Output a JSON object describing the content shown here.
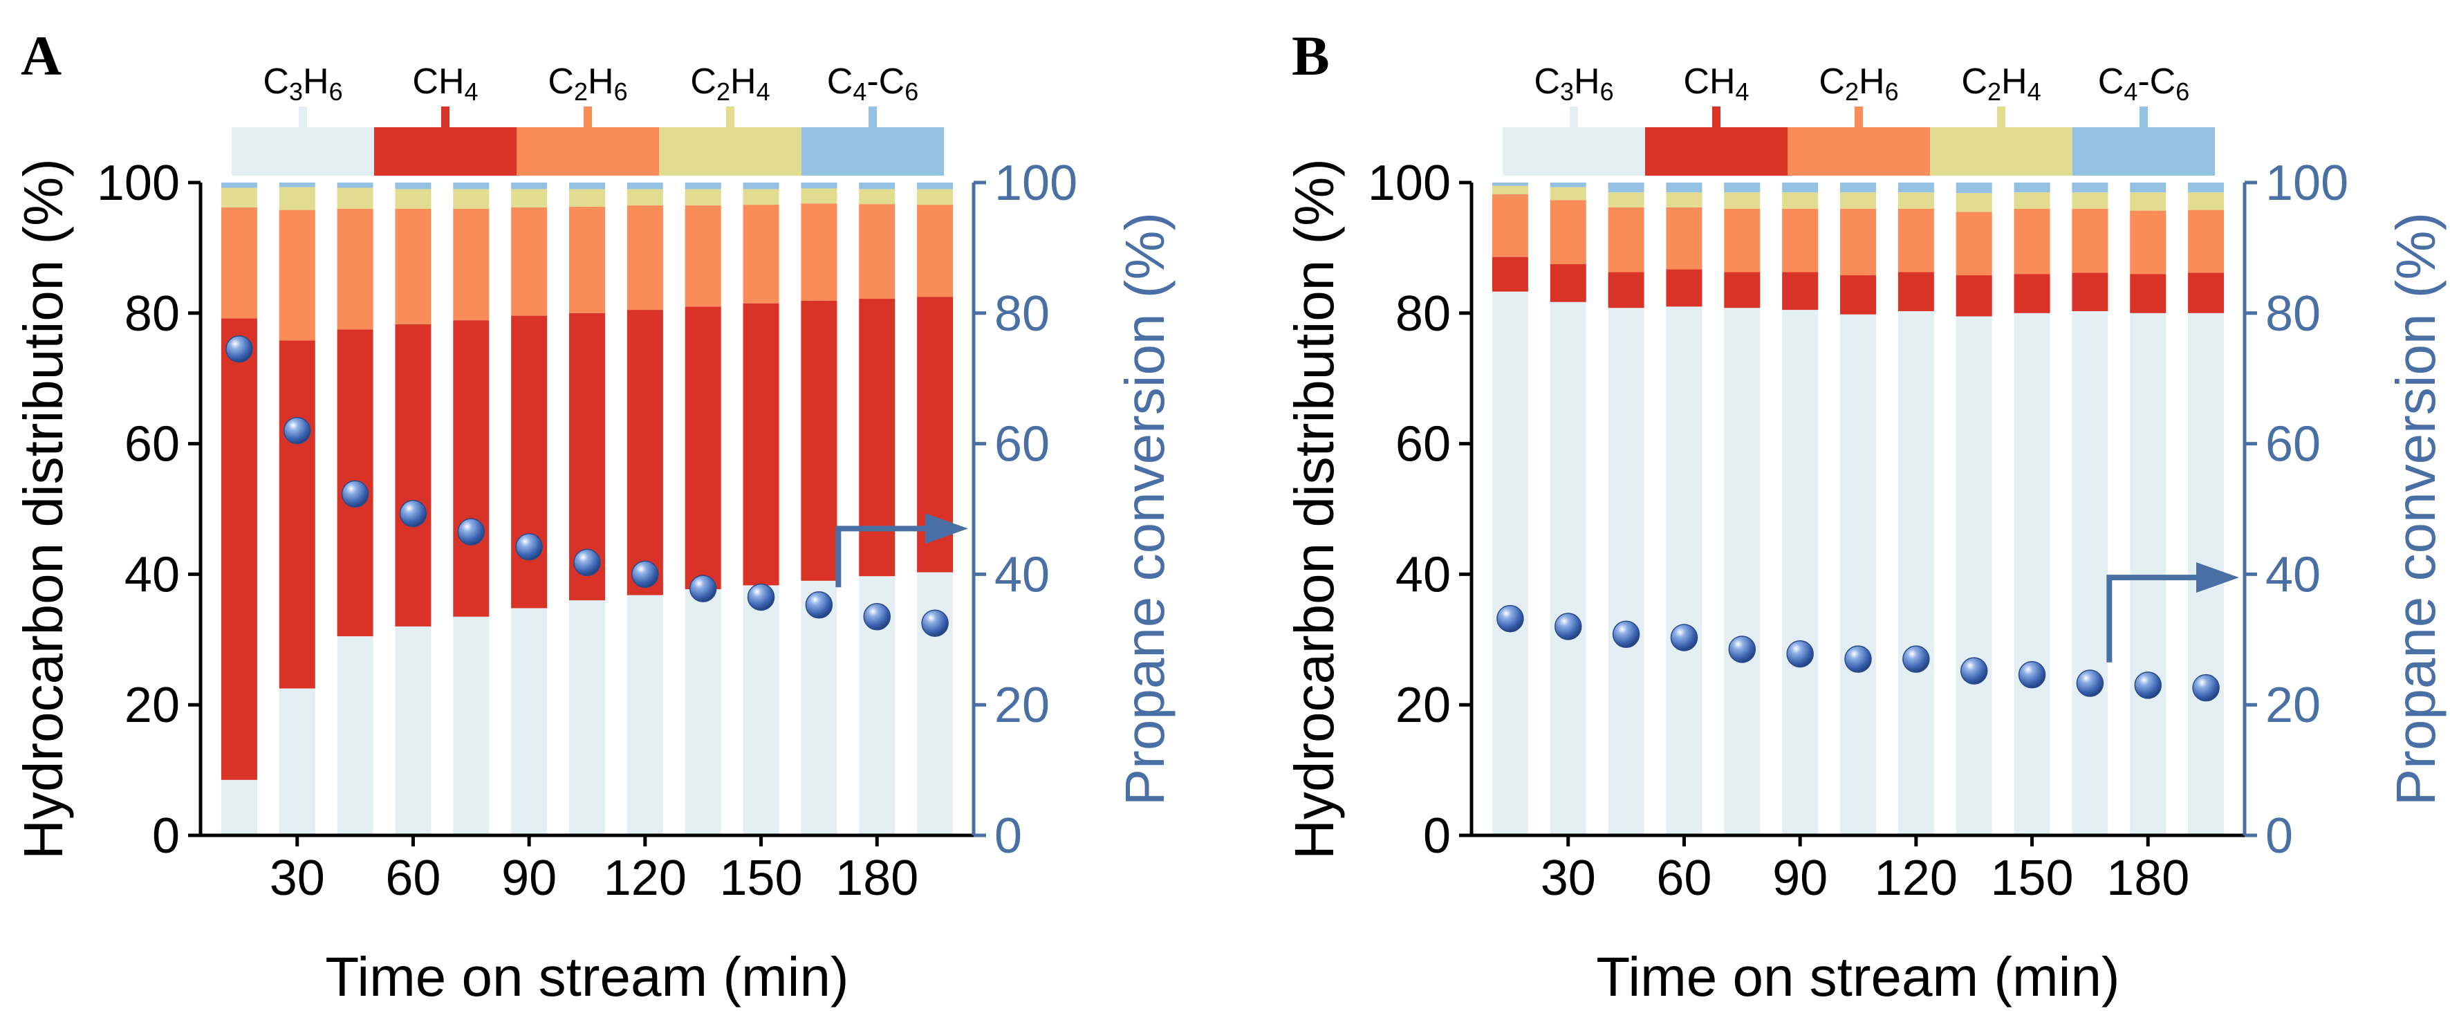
{
  "colors": {
    "C3H6": "#e3eff2",
    "CH4": "#d93327",
    "C2H6": "#f98c58",
    "C2H4": "#e2dc91",
    "C4C6": "#94c0e2",
    "conversion_marker": "#3b63b0",
    "right_axis": "#4a6fa5"
  },
  "chart_data": [
    {
      "type": "bar",
      "stacked": true,
      "panel_label": "A",
      "xlabel": "Time on stream (min)",
      "ylabel": "Hydrocarbon distribution (%)",
      "y2label": "Propane conversion (%)",
      "ylim": [
        0,
        100
      ],
      "y2lim": [
        0,
        100
      ],
      "yticks": [
        0,
        20,
        40,
        60,
        80,
        100
      ],
      "y2ticks": [
        0,
        20,
        40,
        60,
        80,
        100
      ],
      "x": [
        15,
        30,
        45,
        60,
        75,
        90,
        105,
        120,
        135,
        150,
        165,
        180,
        195
      ],
      "xticks": [
        30,
        60,
        90,
        120,
        150,
        180
      ],
      "legend": {
        "placement": "top",
        "entries": [
          {
            "key": "C3H6",
            "base": "C",
            "sub1": "3",
            "mid": "H",
            "sub2": "6"
          },
          {
            "key": "CH4",
            "base": "CH",
            "sub1": "4",
            "mid": "",
            "sub2": ""
          },
          {
            "key": "C2H6",
            "base": "C",
            "sub1": "2",
            "mid": "H",
            "sub2": "6"
          },
          {
            "key": "C2H4",
            "base": "C",
            "sub1": "2",
            "mid": "H",
            "sub2": "4"
          },
          {
            "key": "C4C6",
            "base": "C",
            "sub1": "4",
            "mid": "-C",
            "sub2": "6"
          }
        ]
      },
      "series": [
        {
          "key": "C3H6",
          "values": [
            8.5,
            22.5,
            30.5,
            32.0,
            33.5,
            34.8,
            36.0,
            36.8,
            37.7,
            38.3,
            39.0,
            39.7,
            40.3
          ]
        },
        {
          "key": "CH4",
          "values": [
            70.7,
            53.3,
            47.0,
            46.3,
            45.4,
            44.8,
            44.0,
            43.7,
            43.3,
            43.2,
            42.9,
            42.5,
            42.2
          ]
        },
        {
          "key": "C2H6",
          "values": [
            17.0,
            20.0,
            18.5,
            17.7,
            17.1,
            16.6,
            16.3,
            16.0,
            15.5,
            15.1,
            14.9,
            14.5,
            14.1
          ]
        },
        {
          "key": "C2H4",
          "values": [
            3.0,
            3.5,
            3.2,
            3.0,
            3.0,
            2.8,
            2.7,
            2.5,
            2.5,
            2.4,
            2.3,
            2.3,
            2.4
          ]
        },
        {
          "key": "C4C6",
          "values": [
            0.8,
            0.7,
            0.8,
            1.0,
            1.0,
            1.0,
            1.0,
            1.0,
            1.0,
            1.0,
            0.9,
            1.0,
            1.0
          ]
        }
      ],
      "conversion": [
        74.5,
        62.0,
        52.3,
        49.3,
        46.5,
        44.2,
        41.8,
        40.0,
        37.8,
        36.5,
        35.3,
        33.5,
        32.5
      ],
      "annotation": "arrow pointing to right axis"
    },
    {
      "type": "bar",
      "stacked": true,
      "panel_label": "B",
      "xlabel": "Time on stream (min)",
      "ylabel": "Hydrocarbon distribution (%)",
      "y2label": "Propane conversion (%)",
      "ylim": [
        0,
        100
      ],
      "y2lim": [
        0,
        100
      ],
      "yticks": [
        0,
        20,
        40,
        60,
        80,
        100
      ],
      "y2ticks": [
        0,
        20,
        40,
        60,
        80,
        100
      ],
      "x": [
        15,
        30,
        45,
        60,
        75,
        90,
        105,
        120,
        135,
        150,
        165,
        180,
        195
      ],
      "xticks": [
        30,
        60,
        90,
        120,
        150,
        180
      ],
      "legend": {
        "placement": "top",
        "entries": [
          {
            "key": "C3H6",
            "base": "C",
            "sub1": "3",
            "mid": "H",
            "sub2": "6"
          },
          {
            "key": "CH4",
            "base": "CH",
            "sub1": "4",
            "mid": "",
            "sub2": ""
          },
          {
            "key": "C2H6",
            "base": "C",
            "sub1": "2",
            "mid": "H",
            "sub2": "6"
          },
          {
            "key": "C2H4",
            "base": "C",
            "sub1": "2",
            "mid": "H",
            "sub2": "4"
          },
          {
            "key": "C4C6",
            "base": "C",
            "sub1": "4",
            "mid": "-C",
            "sub2": "6"
          }
        ]
      },
      "series": [
        {
          "key": "C3H6",
          "values": [
            83.3,
            81.7,
            80.8,
            81.0,
            80.8,
            80.5,
            79.8,
            80.3,
            79.5,
            80.0,
            80.3,
            80.0,
            80.0
          ]
        },
        {
          "key": "CH4",
          "values": [
            5.3,
            5.8,
            5.5,
            5.7,
            5.5,
            5.8,
            6.0,
            6.0,
            6.3,
            6.0,
            5.9,
            6.0,
            6.2
          ]
        },
        {
          "key": "C2H6",
          "values": [
            9.6,
            9.8,
            9.9,
            9.5,
            9.7,
            9.7,
            10.2,
            9.7,
            9.7,
            10.0,
            9.8,
            9.7,
            9.6
          ]
        },
        {
          "key": "C2H4",
          "values": [
            1.3,
            2.0,
            2.3,
            2.3,
            2.5,
            2.5,
            2.5,
            2.5,
            2.9,
            2.5,
            2.5,
            2.8,
            2.7
          ]
        },
        {
          "key": "C4C6",
          "values": [
            0.5,
            0.7,
            1.5,
            1.5,
            1.5,
            1.5,
            1.5,
            1.5,
            1.6,
            1.5,
            1.5,
            1.5,
            1.5
          ]
        }
      ],
      "conversion": [
        33.2,
        32.0,
        30.8,
        30.3,
        28.5,
        27.8,
        27.0,
        27.0,
        25.2,
        24.6,
        23.3,
        23.0,
        22.6
      ],
      "annotation": "arrow pointing to right axis"
    }
  ]
}
